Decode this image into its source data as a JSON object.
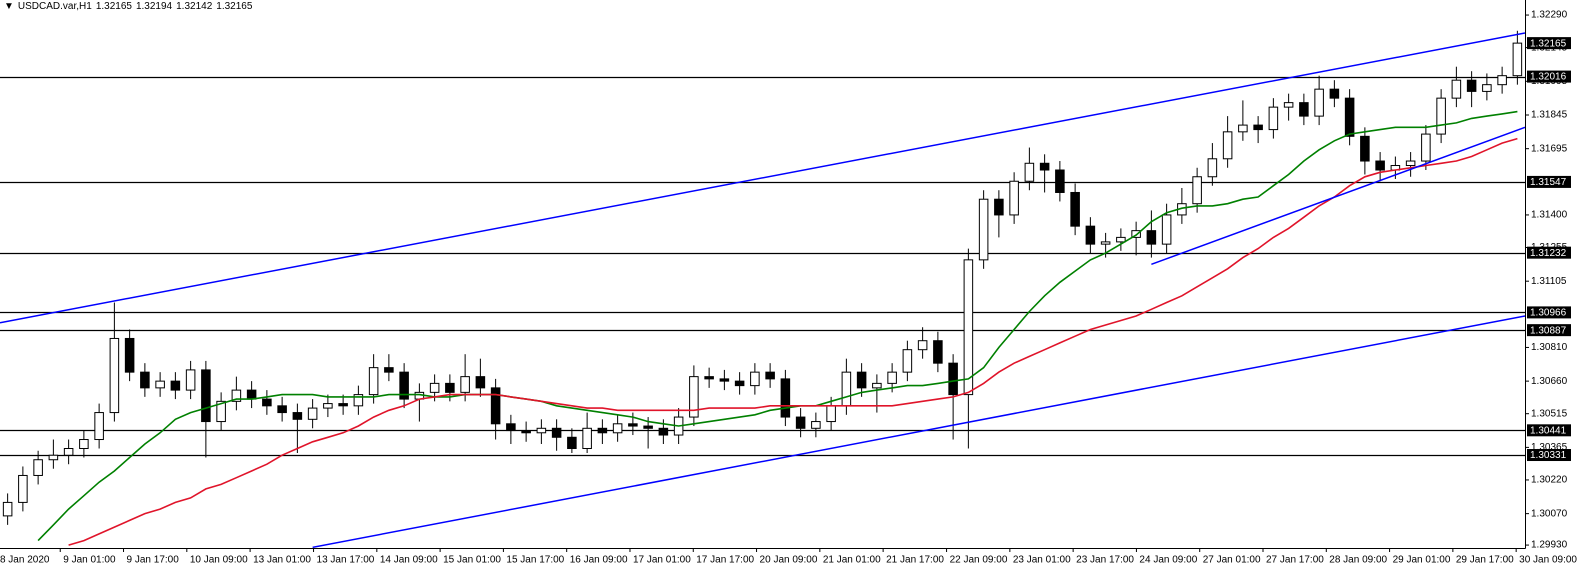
{
  "chart_data": {
    "type": "candlestick",
    "title": "USDCAD.var,H1",
    "header_values": [
      1.32165,
      1.32194,
      1.32142,
      1.32165
    ],
    "xlim": [
      -0.5,
      99.5
    ],
    "ylim": [
      1.29917,
      1.32357
    ],
    "yticks": [
      {
        "value": 1.3229,
        "label": "1.32290"
      },
      1.32145,
      1.31995,
      1.31845,
      1.31695,
      {
        "value": 1.314,
        "label": "1.31400"
      },
      1.31255,
      1.31105,
      {
        "value": 1.3081,
        "label": "1.30810"
      },
      {
        "value": 1.3066,
        "label": "1.30660"
      },
      1.30515,
      1.30365,
      {
        "value": 1.3022,
        "label": "1.30220"
      },
      {
        "value": 1.3007,
        "label": "1.30070"
      },
      {
        "value": 1.2993,
        "label": "1.29930"
      }
    ],
    "xticks": [
      {
        "value": -0.7,
        "label": "8 Jan 2020"
      },
      {
        "value": 3.45,
        "label": "9 Jan 01:00"
      },
      {
        "value": 7.6,
        "label": "9 Jan 17:00"
      },
      {
        "value": 11.75,
        "label": "10 Jan 09:00"
      },
      {
        "value": 15.9,
        "label": "13 Jan 01:00"
      },
      {
        "value": 20.06,
        "label": "13 Jan 17:00"
      },
      {
        "value": 24.21,
        "label": "14 Jan 09:00"
      },
      {
        "value": 28.36,
        "label": "15 Jan 01:00"
      },
      {
        "value": 32.51,
        "label": "15 Jan 17:00"
      },
      {
        "value": 36.66,
        "label": "16 Jan 09:00"
      },
      {
        "value": 40.81,
        "label": "17 Jan 01:00"
      },
      {
        "value": 44.96,
        "label": "17 Jan 17:00"
      },
      {
        "value": 49.11,
        "label": "20 Jan 09:00"
      },
      {
        "value": 53.26,
        "label": "21 Jan 01:00"
      },
      {
        "value": 57.41,
        "label": "21 Jan 17:00"
      },
      {
        "value": 61.57,
        "label": "22 Jan 09:00"
      },
      {
        "value": 65.72,
        "label": "23 Jan 01:00"
      },
      {
        "value": 69.87,
        "label": "23 Jan 17:00"
      },
      {
        "value": 74.02,
        "label": "24 Jan 09:00"
      },
      {
        "value": 78.17,
        "label": "27 Jan 01:00"
      },
      {
        "value": 82.32,
        "label": "27 Jan 17:00"
      },
      {
        "value": 86.47,
        "label": "28 Jan 09:00"
      },
      {
        "value": 90.62,
        "label": "29 Jan 01:00"
      },
      {
        "value": 94.77,
        "label": "29 Jan 17:00"
      },
      {
        "value": 98.92,
        "label": "30 Jan 09:00"
      }
    ],
    "up_color": "#ffffff",
    "down_color": "#000000",
    "candles": [
      [
        1.3006,
        1.3016,
        1.3002,
        1.3012
      ],
      [
        1.3012,
        1.3028,
        1.3008,
        1.3024
      ],
      [
        1.3024,
        1.3035,
        1.302,
        1.3031
      ],
      [
        1.3031,
        1.304,
        1.3027,
        1.3033
      ],
      [
        1.3033,
        1.304,
        1.3029,
        1.3036
      ],
      [
        1.3036,
        1.3044,
        1.3032,
        1.304
      ],
      [
        1.304,
        1.3056,
        1.3036,
        1.3052
      ],
      [
        1.3052,
        1.3101,
        1.3048,
        1.3085
      ],
      [
        1.3085,
        1.3089,
        1.3066,
        1.307
      ],
      [
        1.307,
        1.3074,
        1.3059,
        1.3063
      ],
      [
        1.3063,
        1.307,
        1.3059,
        1.3066
      ],
      [
        1.3066,
        1.307,
        1.3058,
        1.3062
      ],
      [
        1.3062,
        1.3075,
        1.3058,
        1.3071
      ],
      [
        1.3071,
        1.3075,
        1.3032,
        1.3048
      ],
      [
        1.3048,
        1.3061,
        1.3044,
        1.3057
      ],
      [
        1.3057,
        1.3068,
        1.3053,
        1.3062
      ],
      [
        1.3062,
        1.3066,
        1.3054,
        1.3058
      ],
      [
        1.3058,
        1.3062,
        1.3051,
        1.3055
      ],
      [
        1.3055,
        1.3059,
        1.3048,
        1.3052
      ],
      [
        1.3052,
        1.3056,
        1.3034,
        1.3049
      ],
      [
        1.3049,
        1.3058,
        1.3045,
        1.3054
      ],
      [
        1.3054,
        1.306,
        1.305,
        1.3056
      ],
      [
        1.3056,
        1.306,
        1.3051,
        1.3055
      ],
      [
        1.3055,
        1.3064,
        1.3051,
        1.306
      ],
      [
        1.306,
        1.3078,
        1.3056,
        1.3072
      ],
      [
        1.3072,
        1.3078,
        1.3066,
        1.307
      ],
      [
        1.307,
        1.3074,
        1.3054,
        1.3058
      ],
      [
        1.3058,
        1.3065,
        1.3048,
        1.3061
      ],
      [
        1.3061,
        1.3069,
        1.3057,
        1.3065
      ],
      [
        1.3065,
        1.3069,
        1.3057,
        1.3061
      ],
      [
        1.3061,
        1.3078,
        1.3057,
        1.3068
      ],
      [
        1.3068,
        1.3076,
        1.3059,
        1.3063
      ],
      [
        1.3063,
        1.3067,
        1.304,
        1.3047
      ],
      [
        1.3047,
        1.3051,
        1.3038,
        1.3044
      ],
      [
        1.3044,
        1.3048,
        1.3039,
        1.3043
      ],
      [
        1.3043,
        1.3049,
        1.3038,
        1.3045
      ],
      [
        1.3045,
        1.3049,
        1.3035,
        1.3041
      ],
      [
        1.3041,
        1.3045,
        1.3034,
        1.3036
      ],
      [
        1.3036,
        1.3052,
        1.3034,
        1.3045
      ],
      [
        1.3045,
        1.3049,
        1.3038,
        1.3043
      ],
      [
        1.3043,
        1.3051,
        1.3039,
        1.3047
      ],
      [
        1.3047,
        1.3052,
        1.3042,
        1.3046
      ],
      [
        1.3046,
        1.305,
        1.3036,
        1.3045
      ],
      [
        1.3045,
        1.3049,
        1.3038,
        1.3042
      ],
      [
        1.3042,
        1.3054,
        1.3038,
        1.305
      ],
      [
        1.305,
        1.3073,
        1.3046,
        1.3068
      ],
      [
        1.3068,
        1.3072,
        1.3063,
        1.3067
      ],
      [
        1.3067,
        1.3071,
        1.3062,
        1.3066
      ],
      [
        1.3066,
        1.307,
        1.306,
        1.3064
      ],
      [
        1.3064,
        1.3074,
        1.306,
        1.307
      ],
      [
        1.307,
        1.3074,
        1.3063,
        1.3067
      ],
      [
        1.3067,
        1.3071,
        1.3046,
        1.305
      ],
      [
        1.305,
        1.3054,
        1.3041,
        1.3045
      ],
      [
        1.3045,
        1.3052,
        1.3041,
        1.3048
      ],
      [
        1.3048,
        1.3059,
        1.3044,
        1.3055
      ],
      [
        1.3055,
        1.3076,
        1.3051,
        1.307
      ],
      [
        1.307,
        1.3074,
        1.3059,
        1.3063
      ],
      [
        1.3063,
        1.3069,
        1.3052,
        1.3065
      ],
      [
        1.3065,
        1.3074,
        1.3061,
        1.307
      ],
      [
        1.307,
        1.3084,
        1.3066,
        1.308
      ],
      [
        1.308,
        1.309,
        1.3076,
        1.3084
      ],
      [
        1.3084,
        1.3088,
        1.307,
        1.3074
      ],
      [
        1.3074,
        1.3078,
        1.304,
        1.306
      ],
      [
        1.306,
        1.3125,
        1.3036,
        1.312
      ],
      [
        1.312,
        1.3151,
        1.3116,
        1.3147
      ],
      [
        1.3147,
        1.3151,
        1.313,
        1.314
      ],
      [
        1.314,
        1.3159,
        1.3136,
        1.3155
      ],
      [
        1.3155,
        1.317,
        1.3151,
        1.3163
      ],
      [
        1.3163,
        1.3167,
        1.315,
        1.316
      ],
      [
        1.316,
        1.3164,
        1.3146,
        1.315
      ],
      [
        1.315,
        1.3154,
        1.3131,
        1.3135
      ],
      [
        1.3135,
        1.3139,
        1.3123,
        1.3127
      ],
      [
        1.3127,
        1.3132,
        1.3121,
        1.3128
      ],
      [
        1.3128,
        1.3134,
        1.3124,
        1.313
      ],
      [
        1.313,
        1.3137,
        1.3122,
        1.3133
      ],
      [
        1.3133,
        1.3142,
        1.3121,
        1.3127
      ],
      [
        1.3127,
        1.3145,
        1.3123,
        1.314
      ],
      [
        1.314,
        1.3152,
        1.3136,
        1.3145
      ],
      [
        1.3145,
        1.3161,
        1.3141,
        1.3157
      ],
      [
        1.3157,
        1.3172,
        1.3153,
        1.3165
      ],
      [
        1.3165,
        1.3184,
        1.3161,
        1.3177
      ],
      [
        1.3177,
        1.3191,
        1.3173,
        1.318
      ],
      [
        1.318,
        1.3184,
        1.3172,
        1.3178
      ],
      [
        1.3178,
        1.3192,
        1.3174,
        1.3188
      ],
      [
        1.3188,
        1.3194,
        1.3182,
        1.319
      ],
      [
        1.319,
        1.3194,
        1.318,
        1.3184
      ],
      [
        1.3184,
        1.3202,
        1.318,
        1.3196
      ],
      [
        1.3196,
        1.32,
        1.3188,
        1.3192
      ],
      [
        1.3192,
        1.3196,
        1.3171,
        1.3175
      ],
      [
        1.3175,
        1.3179,
        1.3158,
        1.3164
      ],
      [
        1.3164,
        1.3168,
        1.3155,
        1.316
      ],
      [
        1.316,
        1.3166,
        1.3156,
        1.3162
      ],
      [
        1.3162,
        1.3168,
        1.3157,
        1.3164
      ],
      [
        1.3164,
        1.318,
        1.316,
        1.3176
      ],
      [
        1.3176,
        1.3196,
        1.3172,
        1.3192
      ],
      [
        1.3192,
        1.3206,
        1.3188,
        1.32
      ],
      [
        1.32,
        1.3204,
        1.3188,
        1.3195
      ],
      [
        1.3195,
        1.3203,
        1.3191,
        1.3198
      ],
      [
        1.3198,
        1.3206,
        1.3194,
        1.3202
      ],
      [
        1.3202,
        1.3222,
        1.3198,
        1.32165
      ]
    ],
    "overlays": [
      {
        "color": "#008000",
        "values": [
          null,
          null,
          1.2995,
          1.3002,
          1.3009,
          1.3015,
          1.3021,
          1.3026,
          1.3032,
          1.3038,
          1.3043,
          1.3049,
          1.3052,
          1.3054,
          1.3056,
          1.3058,
          1.3058,
          1.3059,
          1.306,
          1.306,
          1.306,
          1.3059,
          1.3059,
          1.3059,
          1.3059,
          1.306,
          1.306,
          1.306,
          1.3059,
          1.3059,
          1.306,
          1.306,
          1.306,
          1.3059,
          1.3058,
          1.3057,
          1.3055,
          1.3054,
          1.3053,
          1.3052,
          1.3051,
          1.305,
          1.3048,
          1.3047,
          1.3046,
          1.3047,
          1.3048,
          1.3049,
          1.305,
          1.3051,
          1.3053,
          1.3054,
          1.3055,
          1.3055,
          1.3057,
          1.3059,
          1.3061,
          1.3062,
          1.3063,
          1.3064,
          1.3064,
          1.3065,
          1.3066,
          1.3067,
          1.3072,
          1.3081,
          1.3089,
          1.3097,
          1.3104,
          1.311,
          1.3115,
          1.312,
          1.3123,
          1.3127,
          1.3131,
          1.3137,
          1.3141,
          1.3143,
          1.3144,
          1.3144,
          1.3145,
          1.3147,
          1.3148,
          1.3153,
          1.3158,
          1.3164,
          1.3169,
          1.3173,
          1.3176,
          1.3177,
          1.3178,
          1.3179,
          1.3179,
          1.3179,
          1.318,
          1.3181,
          1.3183,
          1.3184,
          1.3185,
          1.3186
        ]
      },
      {
        "color": "#e0142a",
        "values": [
          null,
          null,
          null,
          null,
          1.2993,
          1.2995,
          1.2998,
          1.3001,
          1.3004,
          1.3007,
          1.3009,
          1.3012,
          1.3014,
          1.3018,
          1.302,
          1.3023,
          1.3026,
          1.3029,
          1.3033,
          1.3036,
          1.3039,
          1.3041,
          1.3043,
          1.3046,
          1.305,
          1.3053,
          1.3055,
          1.3058,
          1.3059,
          1.306,
          1.306,
          1.306,
          1.306,
          1.3059,
          1.3058,
          1.3057,
          1.3056,
          1.3055,
          1.3054,
          1.3054,
          1.3053,
          1.3053,
          1.3053,
          1.3053,
          1.3053,
          1.3053,
          1.3054,
          1.3054,
          1.3054,
          1.3054,
          1.3055,
          1.3055,
          1.3055,
          1.3055,
          1.3055,
          1.3055,
          1.3055,
          1.3055,
          1.3055,
          1.3056,
          1.3057,
          1.3058,
          1.3059,
          1.3061,
          1.3065,
          1.307,
          1.3074,
          1.3077,
          1.308,
          1.3083,
          1.3086,
          1.3089,
          1.3091,
          1.3093,
          1.3095,
          1.3098,
          1.3101,
          1.3104,
          1.3108,
          1.3112,
          1.3116,
          1.3121,
          1.3125,
          1.313,
          1.3134,
          1.3139,
          1.3144,
          1.3148,
          1.3153,
          1.3157,
          1.3159,
          1.316,
          1.3161,
          1.3162,
          1.3163,
          1.3164,
          1.3166,
          1.3169,
          1.3172,
          1.3174
        ]
      }
    ],
    "trendlines": [
      {
        "color": "#0000ff",
        "points": [
          [
            -0.5,
            1.3092
          ],
          [
            99.5,
            1.3221
          ]
        ]
      },
      {
        "color": "#0000ff",
        "points": [
          [
            20,
            1.2992
          ],
          [
            99.5,
            1.3095
          ]
        ]
      },
      {
        "color": "#0000ff",
        "points": [
          [
            75,
            1.3118
          ],
          [
            99.5,
            1.3179
          ]
        ]
      }
    ],
    "levels": [
      1.32016,
      1.31547,
      1.31232,
      1.30966,
      1.30887,
      1.30441,
      1.30331
    ],
    "level_color": "#000000"
  }
}
